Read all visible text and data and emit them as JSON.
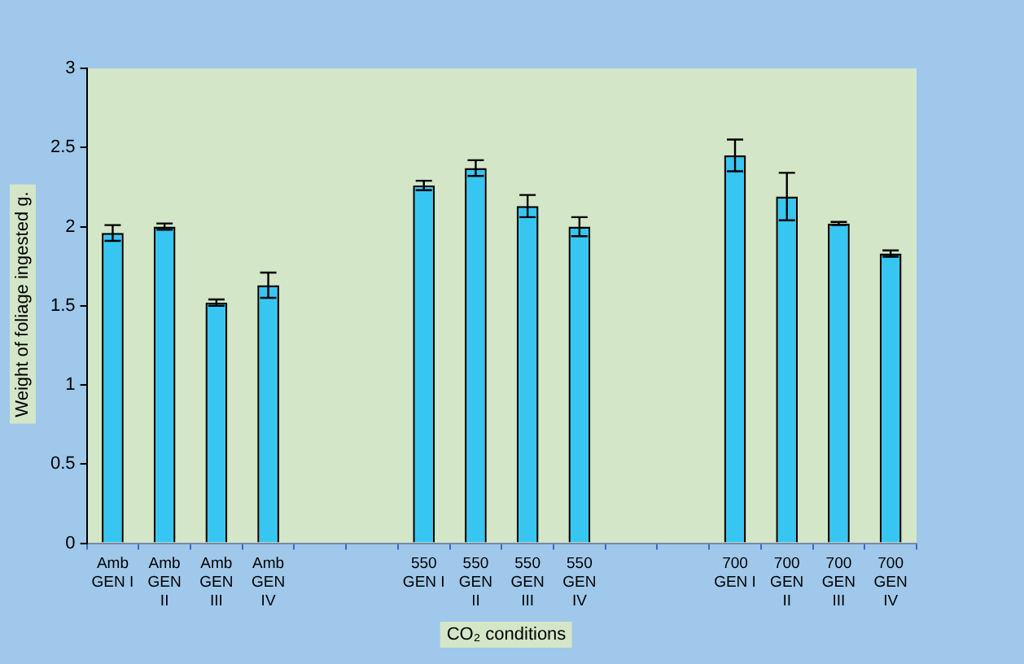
{
  "chart_data": {
    "type": "bar",
    "xlabel": "CO₂ conditions",
    "ylabel": "Weight of foliage ingested g.",
    "categories": [
      "Amb GEN I",
      "Amb GEN II",
      "Amb GEN III",
      "Amb GEN IV",
      null,
      null,
      "550 GEN I",
      "550 GEN II",
      "550 GEN III",
      "550 GEN IV",
      null,
      null,
      "700 GEN I",
      "700 GEN II",
      "700 GEN III",
      "700 GEN IV"
    ],
    "values": [
      1.96,
      2.0,
      1.52,
      1.63,
      null,
      null,
      2.26,
      2.37,
      2.13,
      2.0,
      null,
      null,
      2.45,
      2.19,
      2.02,
      1.83
    ],
    "errors": [
      0.05,
      0.02,
      0.02,
      0.08,
      null,
      null,
      0.03,
      0.05,
      0.07,
      0.06,
      null,
      null,
      0.1,
      0.15,
      0.01,
      0.02
    ],
    "color": "#37c6f2",
    "ylim": [
      0,
      3
    ],
    "yticks": [
      0,
      0.5,
      1,
      1.5,
      2,
      2.5,
      3
    ],
    "grid": false,
    "legend": false
  }
}
